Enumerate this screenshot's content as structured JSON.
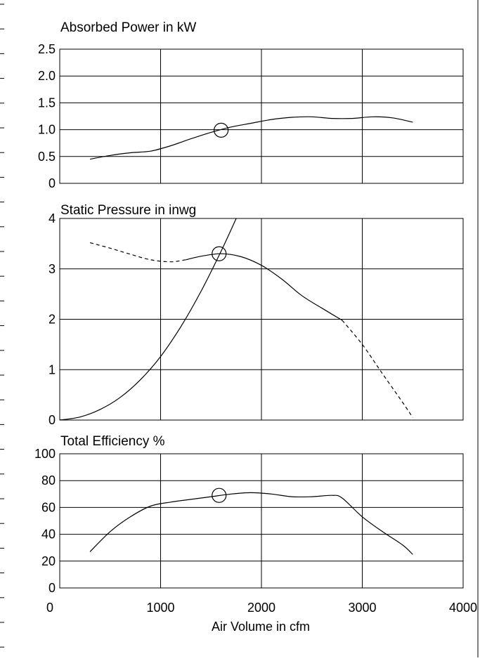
{
  "charts": [
    {
      "key": "power",
      "title": "Absorbed Power in kW",
      "yticks": [
        "0",
        "0.5",
        "1.0",
        "1.5",
        "2.0",
        "2.5"
      ]
    },
    {
      "key": "pressure",
      "title": "Static Pressure in inwg",
      "yticks": [
        "0",
        "1",
        "2",
        "3",
        "4"
      ]
    },
    {
      "key": "efficiency",
      "title": "Total Efficiency %",
      "yticks": [
        "0",
        "20",
        "40",
        "60",
        "80",
        "100"
      ]
    }
  ],
  "xaxis": {
    "label": "Air Volume in cfm",
    "ticks": [
      "0",
      "1000",
      "2000",
      "3000",
      "4000"
    ]
  },
  "chart_data": [
    {
      "type": "line",
      "title": "Absorbed Power in kW",
      "xlabel": "Air Volume in cfm",
      "ylabel": "",
      "xlim": [
        0,
        4000
      ],
      "ylim": [
        0,
        2.5
      ],
      "grid": true,
      "series": [
        {
          "style": "solid",
          "x": [
            300,
            500,
            700,
            900,
            1100,
            1300,
            1500,
            1700,
            1900,
            2100,
            2300,
            2500,
            2700,
            2900,
            3100,
            3300,
            3500
          ],
          "y": [
            0.45,
            0.52,
            0.57,
            0.6,
            0.7,
            0.83,
            0.95,
            1.05,
            1.12,
            1.19,
            1.23,
            1.24,
            1.21,
            1.21,
            1.24,
            1.22,
            1.14
          ]
        }
      ],
      "marker": {
        "x": 1600,
        "y": 0.99
      }
    },
    {
      "type": "line",
      "title": "Static Pressure in inwg",
      "xlabel": "Air Volume in cfm",
      "ylabel": "",
      "xlim": [
        0,
        4000
      ],
      "ylim": [
        0,
        4
      ],
      "grid": true,
      "series": [
        {
          "style": "dashed",
          "x": [
            300,
            500,
            700,
            900,
            1100,
            1250
          ],
          "y": [
            3.52,
            3.41,
            3.29,
            3.18,
            3.14,
            3.18
          ]
        },
        {
          "style": "solid",
          "x": [
            1250,
            1400,
            1600,
            1800,
            2000,
            2200,
            2400,
            2600,
            2800
          ],
          "y": [
            3.18,
            3.25,
            3.3,
            3.24,
            3.07,
            2.8,
            2.47,
            2.22,
            1.98
          ]
        },
        {
          "style": "dashed",
          "x": [
            2800,
            3000,
            3200,
            3400,
            3500
          ],
          "y": [
            1.98,
            1.5,
            0.92,
            0.35,
            0.05
          ]
        },
        {
          "style": "solid",
          "x": [
            0,
            200,
            400,
            600,
            800,
            1000,
            1200,
            1400,
            1600,
            1750
          ],
          "y": [
            0,
            0.06,
            0.21,
            0.45,
            0.8,
            1.26,
            1.85,
            2.55,
            3.35,
            4.0
          ]
        }
      ],
      "marker": {
        "x": 1580,
        "y": 3.3
      }
    },
    {
      "type": "line",
      "title": "Total Efficiency %",
      "xlabel": "Air Volume in cfm",
      "ylabel": "",
      "xlim": [
        0,
        4000
      ],
      "ylim": [
        0,
        100
      ],
      "grid": true,
      "series": [
        {
          "style": "solid",
          "x": [
            300,
            500,
            700,
            900,
            1100,
            1300,
            1500,
            1700,
            1900,
            2100,
            2300,
            2500,
            2700,
            2800,
            3000,
            3200,
            3400,
            3500
          ],
          "y": [
            27,
            42,
            53,
            61,
            64,
            66,
            68,
            70,
            71,
            70,
            68,
            68,
            69,
            67,
            53,
            42,
            32,
            25
          ]
        }
      ],
      "marker": {
        "x": 1580,
        "y": 69
      }
    }
  ]
}
